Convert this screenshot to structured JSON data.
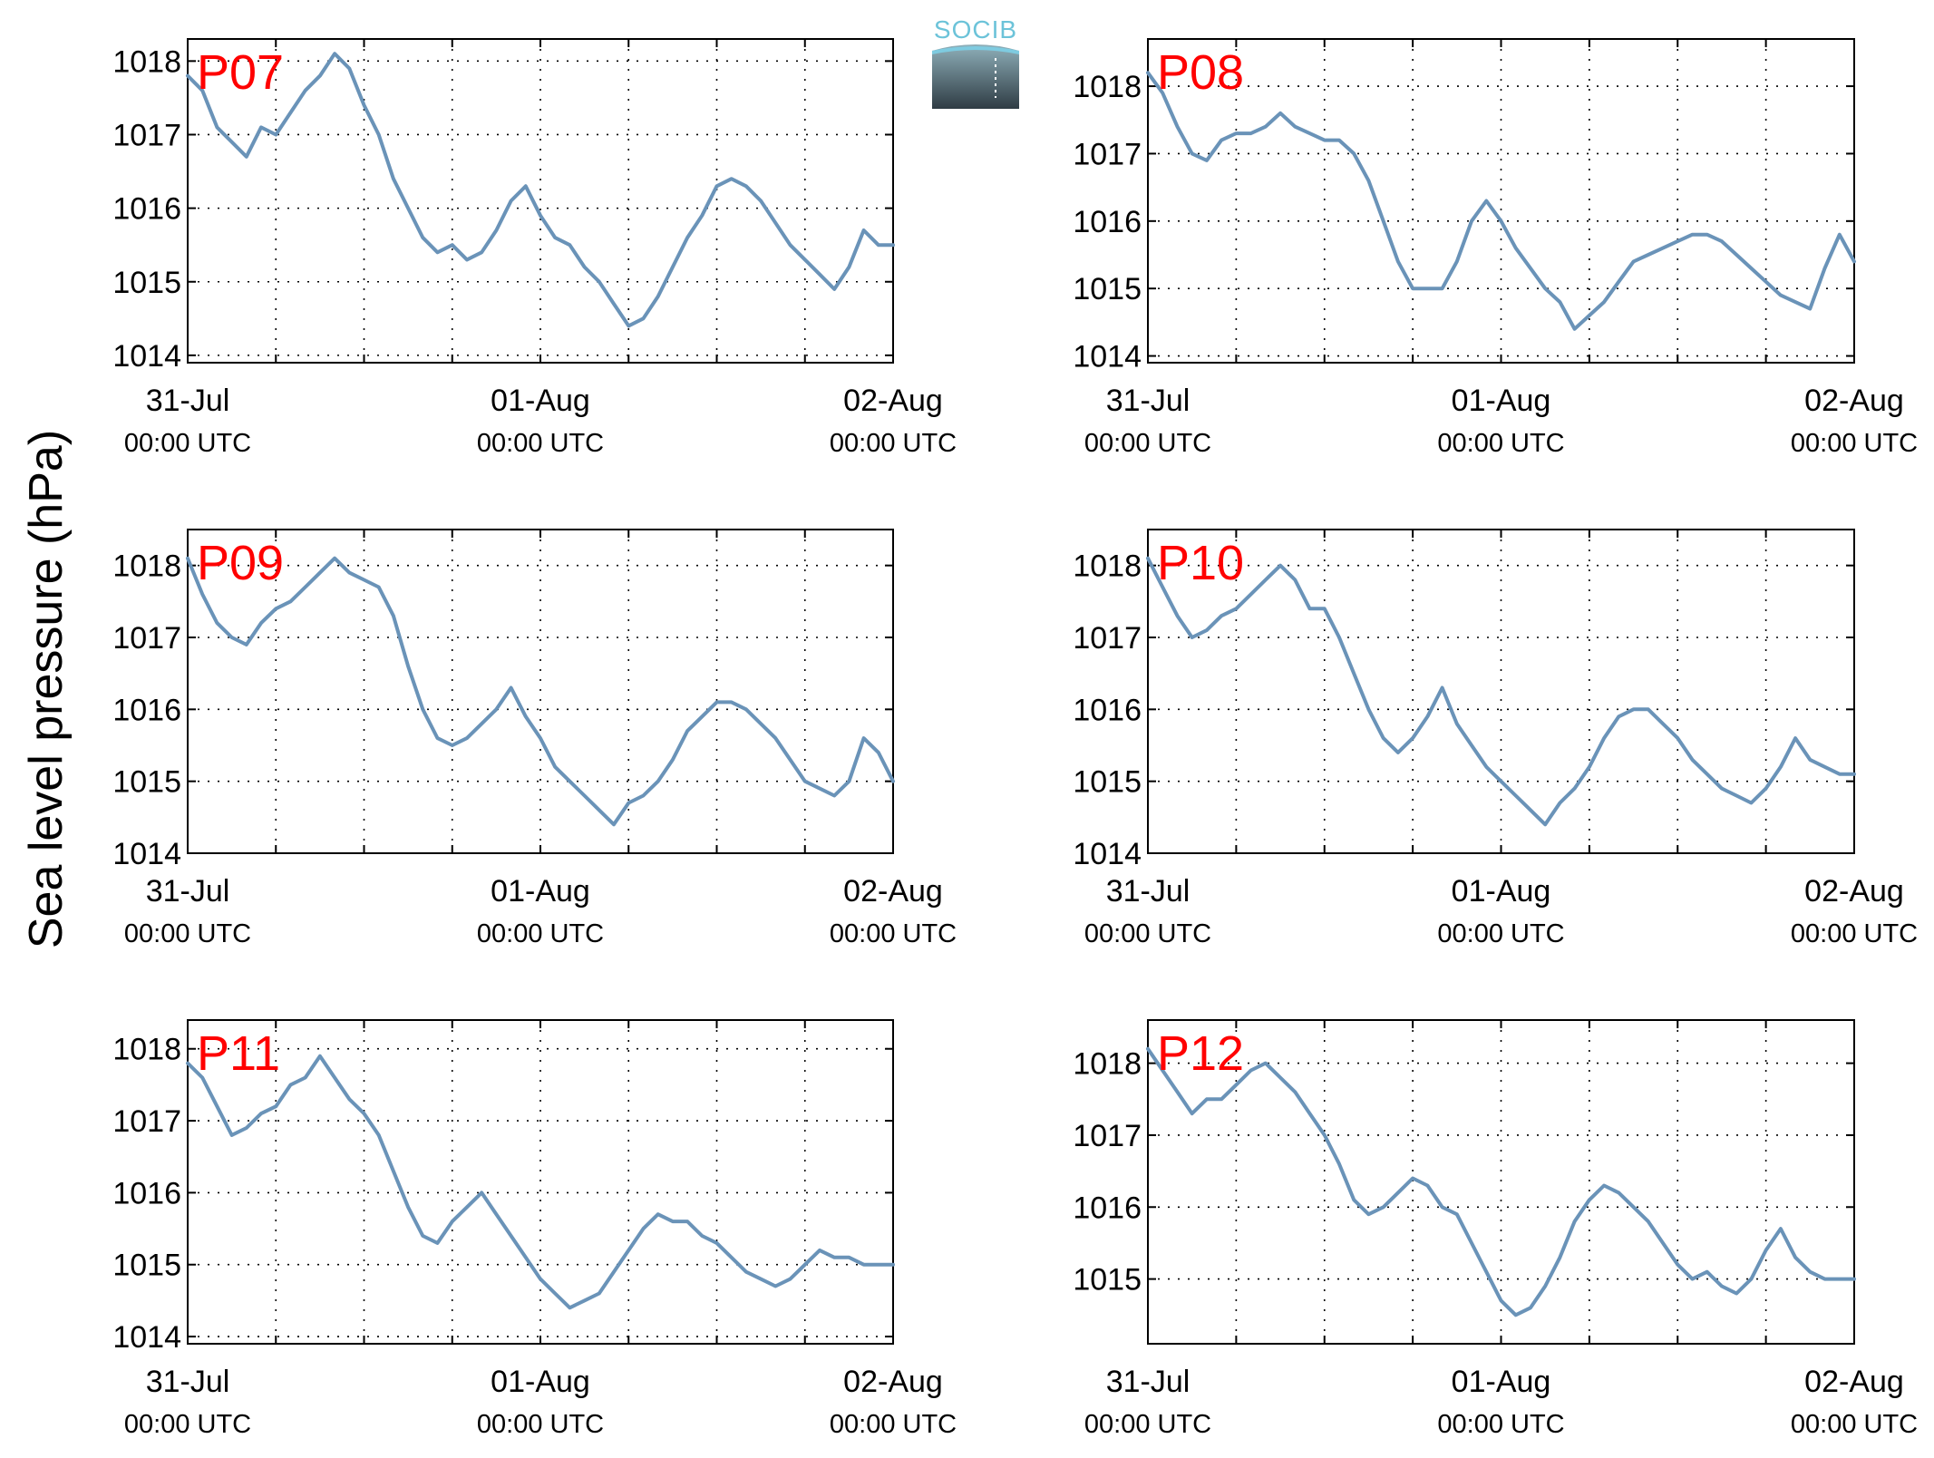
{
  "figure": {
    "ylabel": "Sea level pressure (hPa)",
    "logo_text": "SOCIB",
    "time_labels": [
      {
        "day": "31-Jul",
        "time": "00:00 UTC"
      },
      {
        "day": "01-Aug",
        "time": "00:00 UTC"
      },
      {
        "day": "02-Aug",
        "time": "00:00 UTC"
      }
    ]
  },
  "colors": {
    "line": "#6a93b8",
    "station_label": "#ff0000",
    "grid": "#000000"
  },
  "chart_data": [
    {
      "type": "line",
      "station": "P07",
      "x_unit": "hours since 31-Jul 00:00 UTC",
      "xlim": [
        0,
        48
      ],
      "yticks": [
        1014,
        1015,
        1016,
        1017,
        1018
      ],
      "ylim": [
        1013.9,
        1018.3
      ],
      "x": [
        0,
        1,
        2,
        3,
        4,
        5,
        6,
        7,
        8,
        9,
        10,
        11,
        12,
        13,
        14,
        15,
        16,
        17,
        18,
        19,
        20,
        21,
        22,
        23,
        24,
        25,
        26,
        27,
        28,
        29,
        30,
        31,
        32,
        33,
        34,
        35,
        36,
        37,
        38,
        39,
        40,
        41,
        42,
        43,
        44,
        45,
        46,
        47,
        48
      ],
      "values": [
        1017.8,
        1017.6,
        1017.1,
        1016.9,
        1016.7,
        1017.1,
        1017.0,
        1017.3,
        1017.6,
        1017.8,
        1018.1,
        1017.9,
        1017.4,
        1017.0,
        1016.4,
        1016.0,
        1015.6,
        1015.4,
        1015.5,
        1015.3,
        1015.4,
        1015.7,
        1016.1,
        1016.3,
        1015.9,
        1015.6,
        1015.5,
        1015.2,
        1015.0,
        1014.7,
        1014.4,
        1014.5,
        1014.8,
        1015.2,
        1015.6,
        1015.9,
        1016.3,
        1016.4,
        1016.3,
        1016.1,
        1015.8,
        1015.5,
        1015.3,
        1015.1,
        1014.9,
        1015.2,
        1015.7,
        1015.5,
        1015.5
      ]
    },
    {
      "type": "line",
      "station": "P08",
      "x_unit": "hours since 31-Jul 00:00 UTC",
      "xlim": [
        0,
        48
      ],
      "yticks": [
        1014,
        1015,
        1016,
        1017,
        1018
      ],
      "ylim": [
        1013.9,
        1018.7
      ],
      "x": [
        0,
        1,
        2,
        3,
        4,
        5,
        6,
        7,
        8,
        9,
        10,
        11,
        12,
        13,
        14,
        15,
        16,
        17,
        18,
        19,
        20,
        21,
        22,
        23,
        24,
        25,
        26,
        27,
        28,
        29,
        30,
        31,
        32,
        33,
        34,
        35,
        36,
        37,
        38,
        39,
        40,
        41,
        42,
        43,
        44,
        45,
        46,
        47,
        48
      ],
      "values": [
        1018.2,
        1017.9,
        1017.4,
        1017.0,
        1016.9,
        1017.2,
        1017.3,
        1017.3,
        1017.4,
        1017.6,
        1017.4,
        1017.3,
        1017.2,
        1017.2,
        1017.0,
        1016.6,
        1016.0,
        1015.4,
        1015.0,
        1015.0,
        1015.0,
        1015.4,
        1016.0,
        1016.3,
        1016.0,
        1015.6,
        1015.3,
        1015.0,
        1014.8,
        1014.4,
        1014.6,
        1014.8,
        1015.1,
        1015.4,
        1015.5,
        1015.6,
        1015.7,
        1015.8,
        1015.8,
        1015.7,
        1015.5,
        1015.3,
        1015.1,
        1014.9,
        1014.8,
        1014.7,
        1015.3,
        1015.8,
        1015.4
      ]
    },
    {
      "type": "line",
      "station": "P09",
      "x_unit": "hours since 31-Jul 00:00 UTC",
      "xlim": [
        0,
        48
      ],
      "yticks": [
        1014,
        1015,
        1016,
        1017,
        1018
      ],
      "ylim": [
        1014.0,
        1018.5
      ],
      "x": [
        0,
        1,
        2,
        3,
        4,
        5,
        6,
        7,
        8,
        9,
        10,
        11,
        12,
        13,
        14,
        15,
        16,
        17,
        18,
        19,
        20,
        21,
        22,
        23,
        24,
        25,
        26,
        27,
        28,
        29,
        30,
        31,
        32,
        33,
        34,
        35,
        36,
        37,
        38,
        39,
        40,
        41,
        42,
        43,
        44,
        45,
        46,
        47,
        48
      ],
      "values": [
        1018.1,
        1017.6,
        1017.2,
        1017.0,
        1016.9,
        1017.2,
        1017.4,
        1017.5,
        1017.7,
        1017.9,
        1018.1,
        1017.9,
        1017.8,
        1017.7,
        1017.3,
        1016.6,
        1016.0,
        1015.6,
        1015.5,
        1015.6,
        1015.8,
        1016.0,
        1016.3,
        1015.9,
        1015.6,
        1015.2,
        1015.0,
        1014.8,
        1014.6,
        1014.4,
        1014.7,
        1014.8,
        1015.0,
        1015.3,
        1015.7,
        1015.9,
        1016.1,
        1016.1,
        1016.0,
        1015.8,
        1015.6,
        1015.3,
        1015.0,
        1014.9,
        1014.8,
        1015.0,
        1015.6,
        1015.4,
        1015.0
      ]
    },
    {
      "type": "line",
      "station": "P10",
      "x_unit": "hours since 31-Jul 00:00 UTC",
      "xlim": [
        0,
        48
      ],
      "yticks": [
        1014,
        1015,
        1016,
        1017,
        1018
      ],
      "ylim": [
        1014.0,
        1018.5
      ],
      "x": [
        0,
        1,
        2,
        3,
        4,
        5,
        6,
        7,
        8,
        9,
        10,
        11,
        12,
        13,
        14,
        15,
        16,
        17,
        18,
        19,
        20,
        21,
        22,
        23,
        24,
        25,
        26,
        27,
        28,
        29,
        30,
        31,
        32,
        33,
        34,
        35,
        36,
        37,
        38,
        39,
        40,
        41,
        42,
        43,
        44,
        45,
        46,
        47,
        48
      ],
      "values": [
        1018.1,
        1017.7,
        1017.3,
        1017.0,
        1017.1,
        1017.3,
        1017.4,
        1017.6,
        1017.8,
        1018.0,
        1017.8,
        1017.4,
        1017.4,
        1017.0,
        1016.5,
        1016.0,
        1015.6,
        1015.4,
        1015.6,
        1015.9,
        1016.3,
        1015.8,
        1015.5,
        1015.2,
        1015.0,
        1014.8,
        1014.6,
        1014.4,
        1014.7,
        1014.9,
        1015.2,
        1015.6,
        1015.9,
        1016.0,
        1016.0,
        1015.8,
        1015.6,
        1015.3,
        1015.1,
        1014.9,
        1014.8,
        1014.7,
        1014.9,
        1015.2,
        1015.6,
        1015.3,
        1015.2,
        1015.1,
        1015.1
      ]
    },
    {
      "type": "line",
      "station": "P11",
      "x_unit": "hours since 31-Jul 00:00 UTC",
      "xlim": [
        0,
        48
      ],
      "yticks": [
        1014,
        1015,
        1016,
        1017,
        1018
      ],
      "ylim": [
        1013.9,
        1018.4
      ],
      "x": [
        0,
        1,
        2,
        3,
        4,
        5,
        6,
        7,
        8,
        9,
        10,
        11,
        12,
        13,
        14,
        15,
        16,
        17,
        18,
        19,
        20,
        21,
        22,
        23,
        24,
        25,
        26,
        27,
        28,
        29,
        30,
        31,
        32,
        33,
        34,
        35,
        36,
        37,
        38,
        39,
        40,
        41,
        42,
        43,
        44,
        45,
        46,
        47,
        48
      ],
      "values": [
        1017.8,
        1017.6,
        1017.2,
        1016.8,
        1016.9,
        1017.1,
        1017.2,
        1017.5,
        1017.6,
        1017.9,
        1017.6,
        1017.3,
        1017.1,
        1016.8,
        1016.3,
        1015.8,
        1015.4,
        1015.3,
        1015.6,
        1015.8,
        1016.0,
        1015.7,
        1015.4,
        1015.1,
        1014.8,
        1014.6,
        1014.4,
        1014.5,
        1014.6,
        1014.9,
        1015.2,
        1015.5,
        1015.7,
        1015.6,
        1015.6,
        1015.4,
        1015.3,
        1015.1,
        1014.9,
        1014.8,
        1014.7,
        1014.8,
        1015.0,
        1015.2,
        1015.1,
        1015.1,
        1015.0,
        1015.0,
        1015.0
      ]
    },
    {
      "type": "line",
      "station": "P12",
      "x_unit": "hours since 31-Jul 00:00 UTC",
      "xlim": [
        0,
        48
      ],
      "yticks": [
        1015,
        1016,
        1017,
        1018
      ],
      "ylim": [
        1014.1,
        1018.6
      ],
      "x": [
        0,
        1,
        2,
        3,
        4,
        5,
        6,
        7,
        8,
        9,
        10,
        11,
        12,
        13,
        14,
        15,
        16,
        17,
        18,
        19,
        20,
        21,
        22,
        23,
        24,
        25,
        26,
        27,
        28,
        29,
        30,
        31,
        32,
        33,
        34,
        35,
        36,
        37,
        38,
        39,
        40,
        41,
        42,
        43,
        44,
        45,
        46,
        47,
        48
      ],
      "values": [
        1018.2,
        1017.9,
        1017.6,
        1017.3,
        1017.5,
        1017.5,
        1017.7,
        1017.9,
        1018.0,
        1017.8,
        1017.6,
        1017.3,
        1017.0,
        1016.6,
        1016.1,
        1015.9,
        1016.0,
        1016.2,
        1016.4,
        1016.3,
        1016.0,
        1015.9,
        1015.5,
        1015.1,
        1014.7,
        1014.5,
        1014.6,
        1014.9,
        1015.3,
        1015.8,
        1016.1,
        1016.3,
        1016.2,
        1016.0,
        1015.8,
        1015.5,
        1015.2,
        1015.0,
        1015.1,
        1014.9,
        1014.8,
        1015.0,
        1015.4,
        1015.7,
        1015.3,
        1015.1,
        1015.0,
        1015.0,
        1015.0
      ]
    }
  ]
}
